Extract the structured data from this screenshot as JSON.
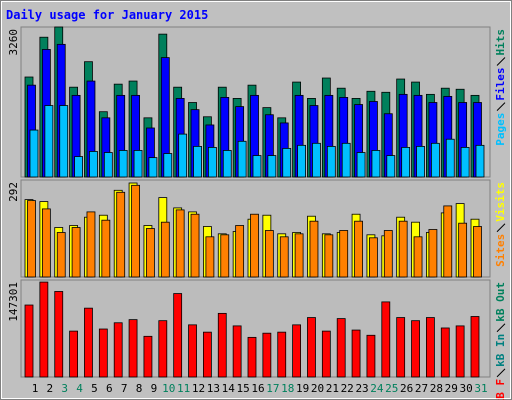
{
  "title": "Daily usage for January 2015",
  "categories": [
    "1",
    "2",
    "3",
    "4",
    "5",
    "6",
    "7",
    "8",
    "9",
    "10",
    "11",
    "12",
    "13",
    "14",
    "15",
    "16",
    "17",
    "18",
    "19",
    "20",
    "21",
    "22",
    "23",
    "24",
    "25",
    "26",
    "27",
    "28",
    "29",
    "30",
    "31"
  ],
  "weekend_indices": [
    2,
    3,
    9,
    10,
    16,
    17,
    23,
    24,
    30
  ],
  "weekday_color": "#000000",
  "weekend_color": "#00805c",
  "chart_data": [
    {
      "type": "bar",
      "ylim": [
        0,
        3260
      ],
      "yticks": [
        3260
      ],
      "series": [
        {
          "name": "Hits",
          "color": "#00805c",
          "values": [
            2173,
            3038,
            3260,
            1952,
            2506,
            1419,
            2018,
            2085,
            1286,
            3105,
            1952,
            1619,
            1309,
            1952,
            1708,
            1996,
            1508,
            1286,
            2063,
            1708,
            2151,
            1930,
            1708,
            1863,
            1841,
            2129,
            2063,
            1796,
            1930,
            1907,
            1774
          ]
        },
        {
          "name": "Files",
          "color": "#0000ff",
          "values": [
            1996,
            2772,
            2883,
            1774,
            2085,
            1286,
            1774,
            1774,
            1065,
            2595,
            1708,
            1464,
            1131,
            1730,
            1530,
            1774,
            1353,
            1175,
            1774,
            1553,
            1774,
            1730,
            1575,
            1641,
            1375,
            1796,
            1774,
            1619,
            1752,
            1619,
            1619
          ]
        },
        {
          "name": "Pages",
          "color": "#00c0ff",
          "values": [
            1020,
            1553,
            1553,
            444,
            555,
            532,
            577,
            577,
            421,
            510,
            932,
            665,
            643,
            577,
            776,
            466,
            466,
            621,
            688,
            732,
            665,
            732,
            532,
            577,
            466,
            643,
            665,
            732,
            821,
            643,
            688
          ]
        }
      ]
    },
    {
      "type": "bar",
      "ylim": [
        0,
        292
      ],
      "yticks": [
        292
      ],
      "series": [
        {
          "name": "Visits",
          "color": "#ffff00",
          "values": [
            233,
            227,
            149,
            155,
            180,
            186,
            261,
            283,
            155,
            239,
            208,
            196,
            152,
            130,
            137,
            174,
            186,
            130,
            134,
            183,
            130,
            134,
            189,
            127,
            124,
            180,
            165,
            134,
            193,
            221,
            174
          ]
        },
        {
          "name": "Sites",
          "color": "#ff8000",
          "values": [
            230,
            205,
            134,
            149,
            196,
            171,
            255,
            276,
            146,
            165,
            202,
            189,
            121,
            127,
            155,
            189,
            140,
            121,
            130,
            168,
            127,
            140,
            168,
            118,
            140,
            168,
            121,
            143,
            214,
            162,
            152
          ]
        }
      ]
    },
    {
      "type": "bar",
      "ylim": [
        0,
        147301
      ],
      "yticks": [
        147301
      ],
      "series": [
        {
          "name": "kB Out",
          "color": "#00805c",
          "values": [
            null,
            null,
            null,
            null,
            null,
            null,
            null,
            null,
            null,
            null,
            null,
            null,
            null,
            null,
            null,
            null,
            null,
            null,
            null,
            null,
            null,
            null,
            null,
            null,
            null,
            null,
            null,
            null,
            null,
            null,
            null
          ]
        },
        {
          "name": "kB In",
          "color": "#008080",
          "values": [
            null,
            null,
            null,
            null,
            null,
            null,
            null,
            null,
            null,
            null,
            null,
            null,
            null,
            null,
            null,
            null,
            null,
            null,
            null,
            null,
            null,
            null,
            null,
            null,
            null,
            null,
            null,
            null,
            null,
            null,
            null
          ]
        },
        {
          "name": "kB F",
          "color": "#ff0000",
          "values": [
            109296,
            144144,
            129888,
            69696,
            104544,
            72864,
            82368,
            87120,
            61776,
            85536,
            126720,
            79200,
            68112,
            96624,
            77616,
            60192,
            66528,
            68112,
            79200,
            90288,
            69696,
            88704,
            71280,
            63360,
            114048,
            90288,
            85536,
            90288,
            74448,
            77616,
            91872
          ]
        }
      ]
    }
  ]
}
